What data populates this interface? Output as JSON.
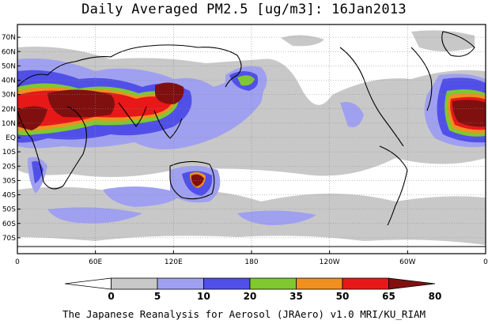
{
  "title": "Daily Averaged PM2.5 [ug/m3]: 16Jan2013",
  "footer": "The Japanese Reanalysis for Aerosol (JRAero) v1.0 MRI/KU_RIAM",
  "lat_labels": [
    "70N",
    "60N",
    "50N",
    "40N",
    "30N",
    "20N",
    "10N",
    "EQ",
    "10S",
    "20S",
    "30S",
    "40S",
    "50S",
    "60S",
    "70S"
  ],
  "lon_labels": [
    "0",
    "60E",
    "120E",
    "180",
    "120W",
    "60W",
    "0"
  ],
  "colorbar": {
    "levels": [
      "0",
      "5",
      "10",
      "20",
      "35",
      "50",
      "65",
      "80"
    ],
    "colors": [
      "#ffffff",
      "#c8c8c8",
      "#a0a0f0",
      "#5050e8",
      "#80c830",
      "#f09020",
      "#e81818",
      "#801010"
    ]
  },
  "palette": {
    "c5": "#c8c8c8",
    "c10": "#a0a0f0",
    "c20": "#5050e8",
    "c35": "#80c830",
    "c50": "#f09020",
    "c65": "#e81818",
    "c80": "#801010",
    "land": "#000000"
  }
}
